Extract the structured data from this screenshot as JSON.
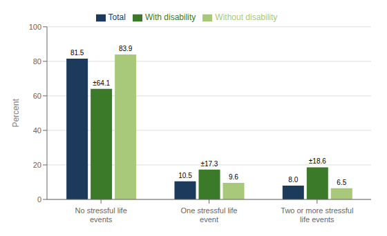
{
  "chart_data": {
    "type": "bar",
    "categories": [
      "No stressful life events",
      "One stressful life event",
      "Two or more stressful life events"
    ],
    "series": [
      {
        "name": "Total",
        "color": "#1b3a5c",
        "values": [
          81.5,
          10.5,
          8.0
        ],
        "value_labels": [
          "81.5",
          "10.5",
          "8.0"
        ]
      },
      {
        "name": "With disability",
        "color": "#3a7a28",
        "values": [
          64.1,
          17.3,
          18.6
        ],
        "value_labels": [
          "±64.1",
          "±17.3",
          "±18.6"
        ]
      },
      {
        "name": "Without disability",
        "color": "#a8c87a",
        "values": [
          83.9,
          9.6,
          6.5
        ],
        "value_labels": [
          "83.9",
          "9.6",
          "6.5"
        ]
      }
    ],
    "ylabel": "Percent",
    "ylim": [
      0,
      100
    ],
    "yticks": [
      0,
      20,
      40,
      60,
      80,
      100
    ],
    "grid": true,
    "legend": "top",
    "data_labels": true
  }
}
